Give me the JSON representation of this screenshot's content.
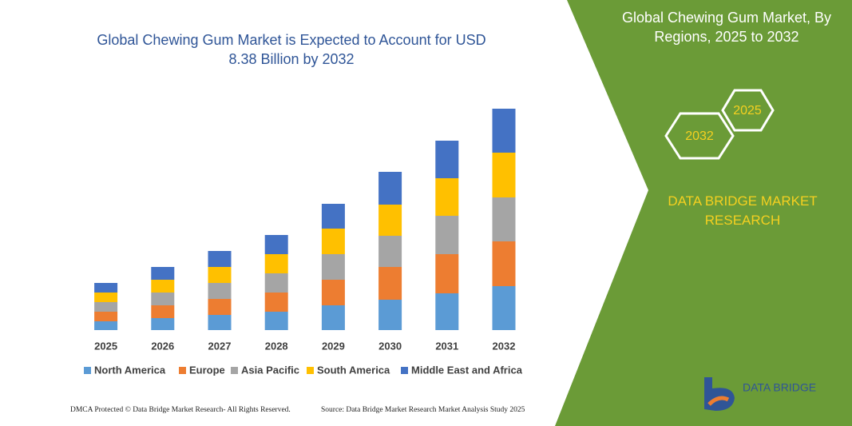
{
  "chart_data": {
    "type": "stacked-bar",
    "title": "Global Chewing Gum Market is Expected to Account for USD 8.38 Billion by 2032",
    "categories": [
      "2025",
      "2026",
      "2027",
      "2028",
      "2029",
      "2030",
      "2031",
      "2032"
    ],
    "series": [
      {
        "name": "North America",
        "color": "#5b9bd5",
        "values": [
          11,
          15,
          19,
          23,
          31,
          38,
          46,
          55
        ]
      },
      {
        "name": "Europe",
        "color": "#ed7d31",
        "values": [
          12,
          16,
          20,
          24,
          32,
          41,
          49,
          56
        ]
      },
      {
        "name": "Asia Pacific",
        "color": "#a5a5a5",
        "values": [
          12,
          16,
          20,
          24,
          32,
          39,
          48,
          55
        ]
      },
      {
        "name": "South America",
        "color": "#ffc000",
        "values": [
          12,
          16,
          20,
          24,
          32,
          39,
          47,
          56
        ]
      },
      {
        "name": "Middle East and Africa",
        "color": "#4472c4",
        "values": [
          12,
          16,
          20,
          24,
          31,
          41,
          47,
          55
        ]
      }
    ],
    "ylim": [
      0,
      280
    ]
  },
  "panel": {
    "title": "Global Chewing Gum Market, By Regions, 2025 to 2032",
    "hex_top": "2025",
    "hex_bottom": "2032",
    "brand": "DATA BRIDGE MARKET RESEARCH",
    "logo": "DATA BRIDGE"
  },
  "footer": {
    "left": "DMCA Protected © Data Bridge Market Research- All Rights Reserved.",
    "right": "Source: Data Bridge Market Research Market Analysis Study 2025"
  }
}
